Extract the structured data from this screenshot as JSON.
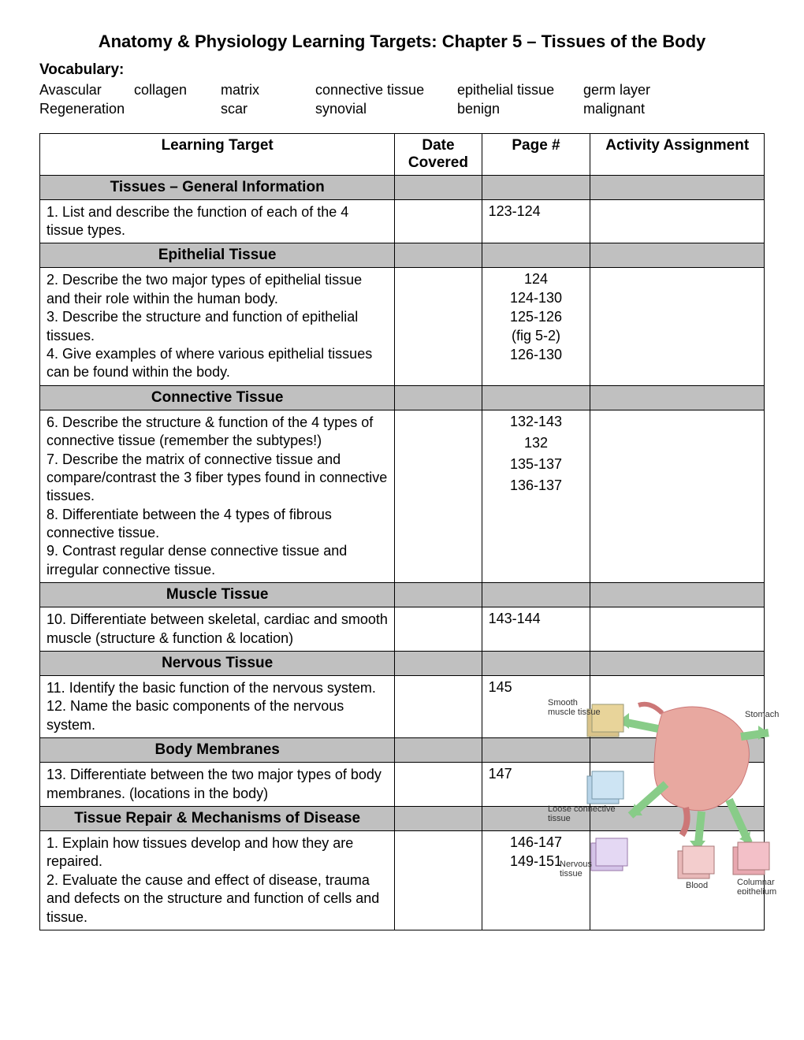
{
  "title": "Anatomy & Physiology Learning Targets:  Chapter 5 – Tissues of the Body",
  "vocabHeading": "Vocabulary:",
  "vocabRow1": {
    "c1": "Avascular",
    "c2": "collagen",
    "c3": "matrix",
    "c4": "connective tissue",
    "c5": "epithelial tissue",
    "c6": "germ layer"
  },
  "vocabRow2": {
    "c1": "Regeneration",
    "c2": "",
    "c3": "scar",
    "c4": "synovial",
    "c5": "benign",
    "c6": "malignant"
  },
  "headers": {
    "lt": "Learning Target",
    "date": "Date Covered",
    "page": "Page #",
    "act": "Activity Assignment"
  },
  "sections": {
    "s1": "Tissues – General Information",
    "s2": "Epithelial Tissue",
    "s3": "Connective Tissue",
    "s4": "Muscle Tissue",
    "s5": "Nervous Tissue",
    "s6": "Body Membranes",
    "s7": "Tissue Repair & Mechanisms of Disease"
  },
  "rows": {
    "r1": {
      "lt": "1.  List and describe the function of each of the 4 tissue types.",
      "page": "123-124"
    },
    "r2": {
      "lt": "2.  Describe the two major types of epithelial tissue and their role within the human body.\n3.  Describe the structure and function of epithelial tissues.\n4.  Give examples of where various epithelial tissues can be found within the body.",
      "pages": [
        "124",
        "124-130",
        "125-126",
        "(fig 5-2)",
        "126-130"
      ]
    },
    "r3": {
      "lt": "6.  Describe the structure & function of the 4 types of connective tissue (remember the subtypes!)\n7.  Describe the matrix of connective tissue and compare/contrast the 3 fiber types found in connective tissues.\n8.  Differentiate between the 4 types of fibrous connective tissue.\n9.  Contrast regular dense connective tissue and irregular connective tissue.",
      "pages": [
        "132-143",
        "",
        "132",
        "",
        "135-137",
        "",
        "136-137"
      ]
    },
    "r4": {
      "lt": "10.  Differentiate between skeletal, cardiac and smooth muscle (structure & function & location)",
      "page": "143-144"
    },
    "r5": {
      "lt": "11.  Identify the basic function of the nervous system.\n12.  Name the basic components of the nervous system.",
      "page": "145"
    },
    "r6": {
      "lt": "13.  Differentiate between the two major types of body membranes. (locations in the body)",
      "page": "147"
    },
    "r7": {
      "lt": "1.  Explain how tissues develop and how they are repaired.\n2.  Evaluate the cause and effect of disease, trauma and defects on the structure and function of cells and tissue.",
      "pages": [
        "146-147",
        "149-151"
      ]
    }
  },
  "diagramLabels": {
    "smooth": "Smooth\nmuscle tissue",
    "stomach": "Stomach",
    "loose": "Loose connective\ntissue",
    "nervous": "Nervous\ntissue",
    "blood": "Blood",
    "columnar": "Columnar\nepithelium"
  },
  "colors": {
    "sectionBg": "#c0c0c0",
    "border": "#000000",
    "background": "#ffffff"
  }
}
